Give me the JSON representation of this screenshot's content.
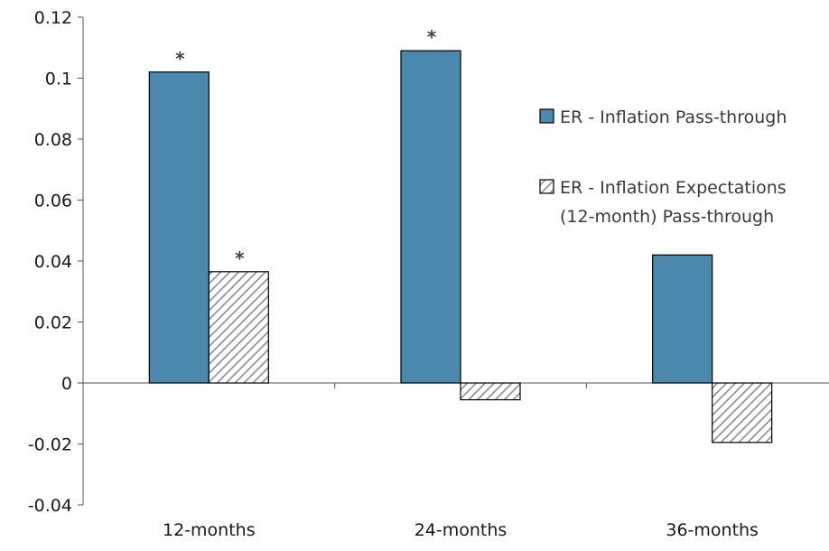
{
  "chart_data": {
    "type": "bar",
    "categories": [
      "12-months",
      "24-months",
      "36-months"
    ],
    "ylim": [
      -0.04,
      0.12
    ],
    "yticks": [
      "-0.04",
      "-0.02",
      "0",
      "0.02",
      "0.04",
      "0.06",
      "0.08",
      "0.1",
      "0.12"
    ],
    "grid": false,
    "legend_position": "right",
    "series": [
      {
        "name": "ER - Inflation Pass-through",
        "values": [
          0.102,
          0.109,
          0.042
        ],
        "significant": [
          true,
          true,
          false
        ],
        "color": "#4a88ad",
        "pattern": "solid"
      },
      {
        "name": "ER - Inflation Expectations (12-month) Pass-through",
        "values": [
          0.0365,
          -0.0055,
          -0.0195
        ],
        "significant": [
          true,
          false,
          false
        ],
        "color": "#8c8c8c",
        "pattern": "diagonal-hatch"
      }
    ],
    "significance_marker": "*"
  },
  "legend": {
    "items": [
      {
        "lines": [
          "ER - Inflation Pass-through"
        ]
      },
      {
        "lines": [
          "ER - Inflation Expectations",
          "(12-month) Pass-through"
        ]
      }
    ]
  }
}
